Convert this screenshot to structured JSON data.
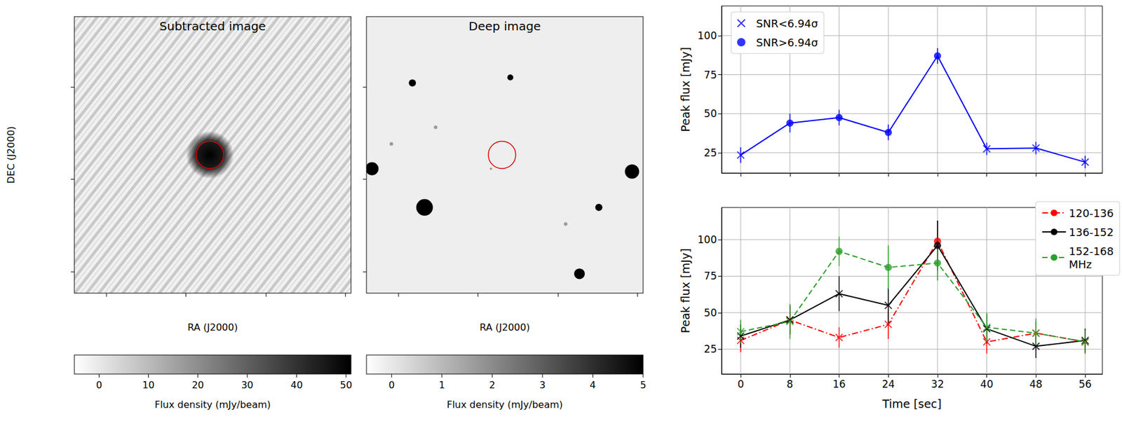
{
  "images": [
    {
      "title": "Subtracted image",
      "xlabel": "RA (J2000)",
      "ylabel": "DEC (J2000)",
      "colorbar": {
        "label": "Flux density (mJy/beam)",
        "range": [
          -5,
          51
        ],
        "ticks": [
          0,
          10,
          20,
          30,
          40,
          50
        ]
      }
    },
    {
      "title": "Deep image",
      "xlabel": "RA (J2000)",
      "colorbar": {
        "label": "Flux density (mJy/beam)",
        "range": [
          -0.5,
          5
        ],
        "ticks": [
          0,
          1,
          2,
          3,
          4,
          5
        ]
      }
    }
  ],
  "chart_data": [
    {
      "type": "line",
      "ylabel": "Peak flux [mJy]",
      "x": [
        0,
        8,
        16,
        24,
        32,
        40,
        48,
        56
      ],
      "xlim": [
        -3.1,
        58.8
      ],
      "xticks": [
        0,
        8,
        16,
        24,
        32,
        40,
        48,
        56
      ],
      "ylim": [
        12,
        119
      ],
      "yticks": [
        25,
        50,
        75,
        100
      ],
      "grid": true,
      "tick_labels": "y",
      "legend": "upper left",
      "legend_entries": [
        {
          "name": "SNR<6.94σ",
          "marker": "x"
        },
        {
          "name": "SNR>6.94σ",
          "marker": "o"
        }
      ],
      "series": [
        {
          "color": "#0000ff",
          "line_style": "solid",
          "values": [
            23.5,
            44,
            47.5,
            38,
            87,
            27.5,
            28,
            19
          ],
          "errors": [
            5,
            6,
            5,
            5,
            5,
            4,
            4,
            4
          ],
          "markers": [
            "x",
            "o",
            "o",
            "o",
            "o",
            "x",
            "x",
            "x"
          ]
        }
      ]
    },
    {
      "type": "line",
      "xlabel": "Time [sec]",
      "ylabel": "Peak flux [mJy]",
      "x": [
        0,
        8,
        16,
        24,
        32,
        40,
        48,
        56
      ],
      "xlim": [
        -3.1,
        58.8
      ],
      "xticks": [
        0,
        8,
        16,
        24,
        32,
        40,
        48,
        56
      ],
      "ylim": [
        8,
        122
      ],
      "yticks": [
        25,
        50,
        75,
        100
      ],
      "grid": true,
      "legend": "upper right",
      "series": [
        {
          "name": "120-136",
          "color": "#ff0000",
          "line_style": "dashdot",
          "values": [
            31,
            45,
            33,
            42,
            99,
            30,
            36,
            30
          ],
          "errors": [
            8,
            10,
            7,
            10,
            14,
            8,
            8,
            8
          ],
          "markers": [
            "x",
            "x",
            "x",
            "x",
            "o",
            "x",
            "x",
            "x"
          ]
        },
        {
          "name": "136-152",
          "color": "#000000",
          "line_style": "solid",
          "values": [
            34,
            45,
            63,
            55,
            96,
            39,
            27,
            31
          ],
          "errors": [
            8,
            10,
            12,
            12,
            17,
            10,
            8,
            8
          ],
          "markers": [
            "x",
            "x",
            "x",
            "x",
            "o",
            "x",
            "x",
            "x"
          ]
        },
        {
          "name": "152-168 MHz",
          "color": "#2ca02c",
          "line_style": "dashed",
          "values": [
            37,
            44,
            92,
            81,
            84,
            40,
            36,
            30
          ],
          "errors": [
            8,
            12,
            10,
            15,
            12,
            10,
            10,
            8
          ],
          "markers": [
            "x",
            "x",
            "o",
            "o",
            "o",
            "x",
            "x",
            "x"
          ]
        }
      ]
    }
  ]
}
